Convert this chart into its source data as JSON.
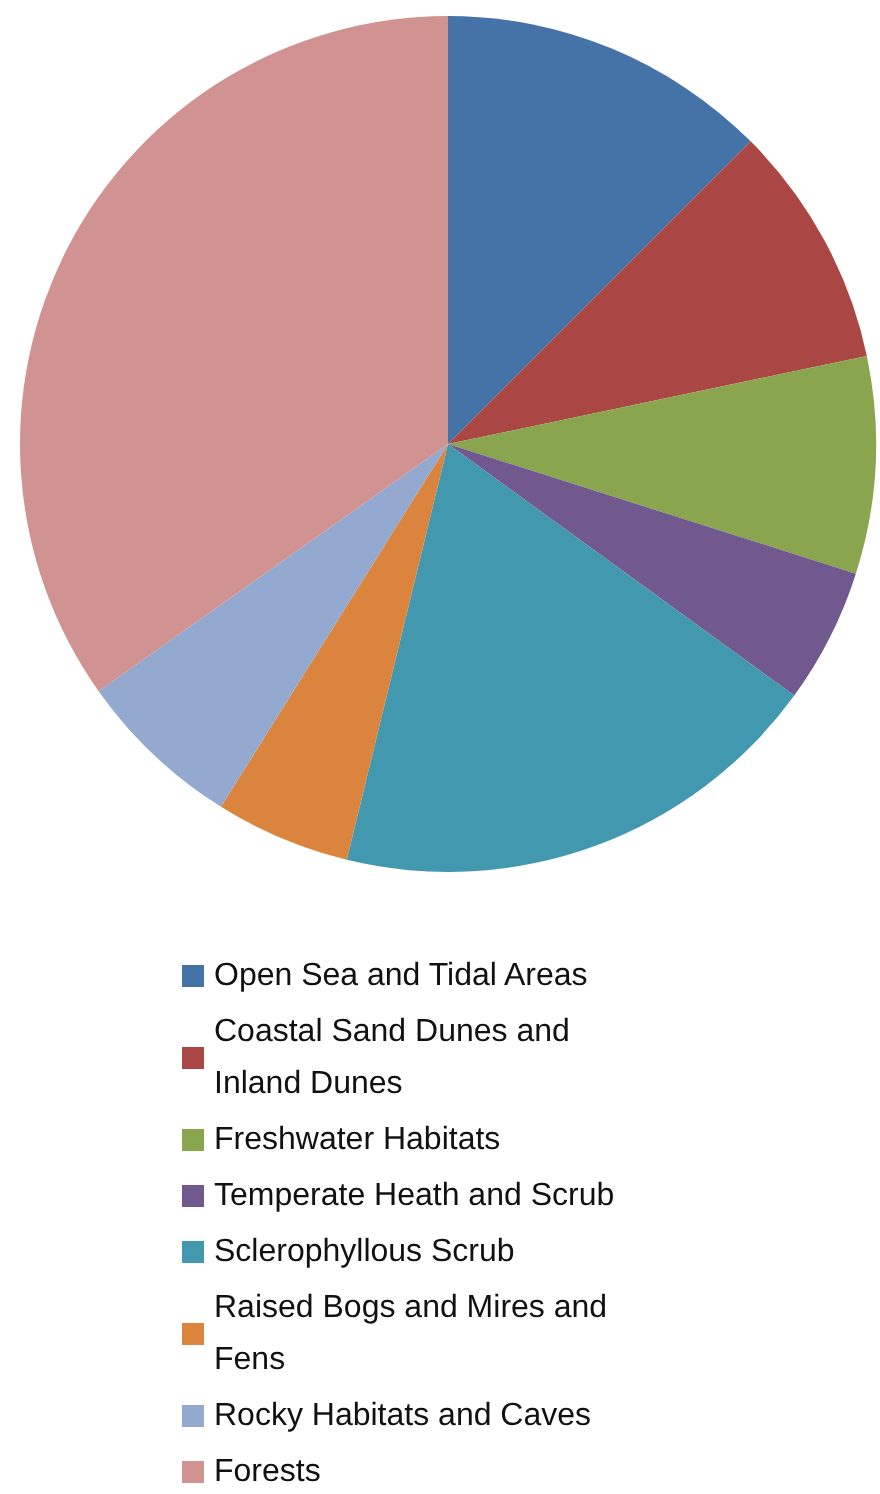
{
  "chart_data": {
    "type": "pie",
    "categories": [
      "Open Sea and Tidal Areas",
      "Coastal Sand Dunes and Inland Dunes",
      "Freshwater Habitats",
      "Temperate Heath and Scrub",
      "Sclerophyllous Scrub",
      "Raised Bogs and Mires and Fens",
      "Rocky Habitats and Caves",
      "Forests"
    ],
    "values": [
      12.5,
      9.2,
      8.2,
      5.1,
      18.8,
      5.1,
      6.3,
      34.8
    ],
    "colors": [
      "#4572a7",
      "#aa4643",
      "#89a54e",
      "#71588f",
      "#4198af",
      "#db843d",
      "#93a9cf",
      "#d09392"
    ],
    "legend": "bottom"
  }
}
